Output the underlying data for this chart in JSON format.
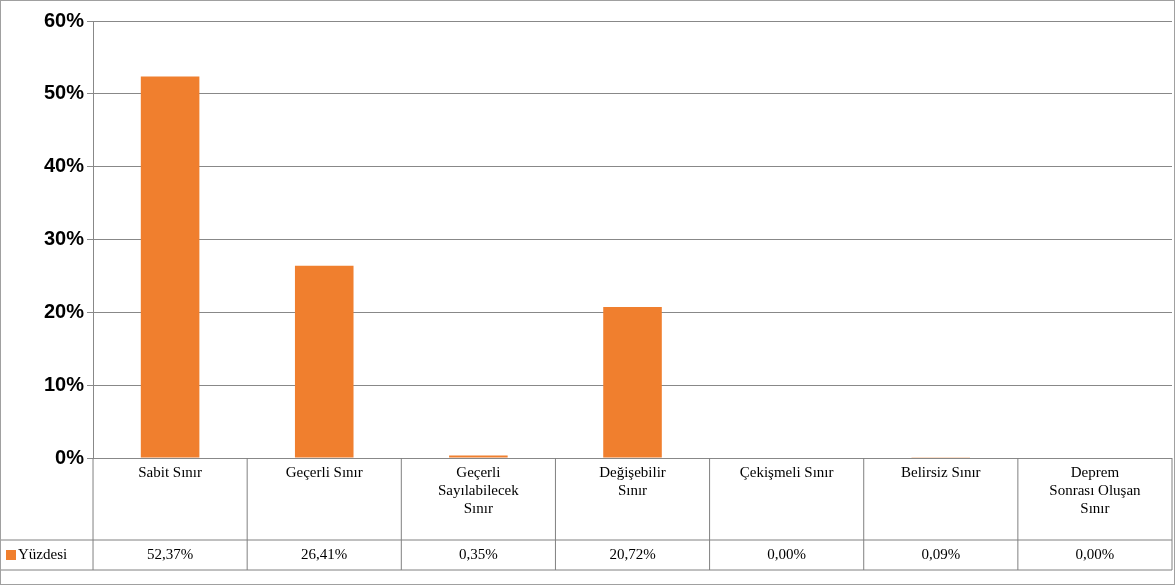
{
  "chart_data": {
    "type": "bar",
    "categories": [
      "Sabit Sınır",
      "Geçerli Sınır",
      "Geçerli Sayılabilecek Sınır",
      "Değişebilir Sınır",
      "Çekişmeli Sınır",
      "Belirsiz Sınır",
      "Deprem Sonrası Oluşan Sınır"
    ],
    "series": [
      {
        "name": "Yüzdesi",
        "color": "#f07f2e",
        "values": [
          52.37,
          26.41,
          0.35,
          20.72,
          0,
          0.09,
          0
        ],
        "value_labels": [
          "52,37%",
          "26,41%",
          "0,35%",
          "20,72%",
          "0,00%",
          "0,09%",
          "0,00%"
        ]
      }
    ],
    "ylim": [
      0,
      60
    ],
    "yticks": [
      {
        "value": 0,
        "label": "0%"
      },
      {
        "value": 10,
        "label": "10%"
      },
      {
        "value": 20,
        "label": "20%"
      },
      {
        "value": 30,
        "label": "30%"
      },
      {
        "value": 40,
        "label": "40%"
      },
      {
        "value": 50,
        "label": "50%"
      },
      {
        "value": 60,
        "label": "60%"
      }
    ],
    "grid": "y",
    "legend": "bottom left"
  }
}
